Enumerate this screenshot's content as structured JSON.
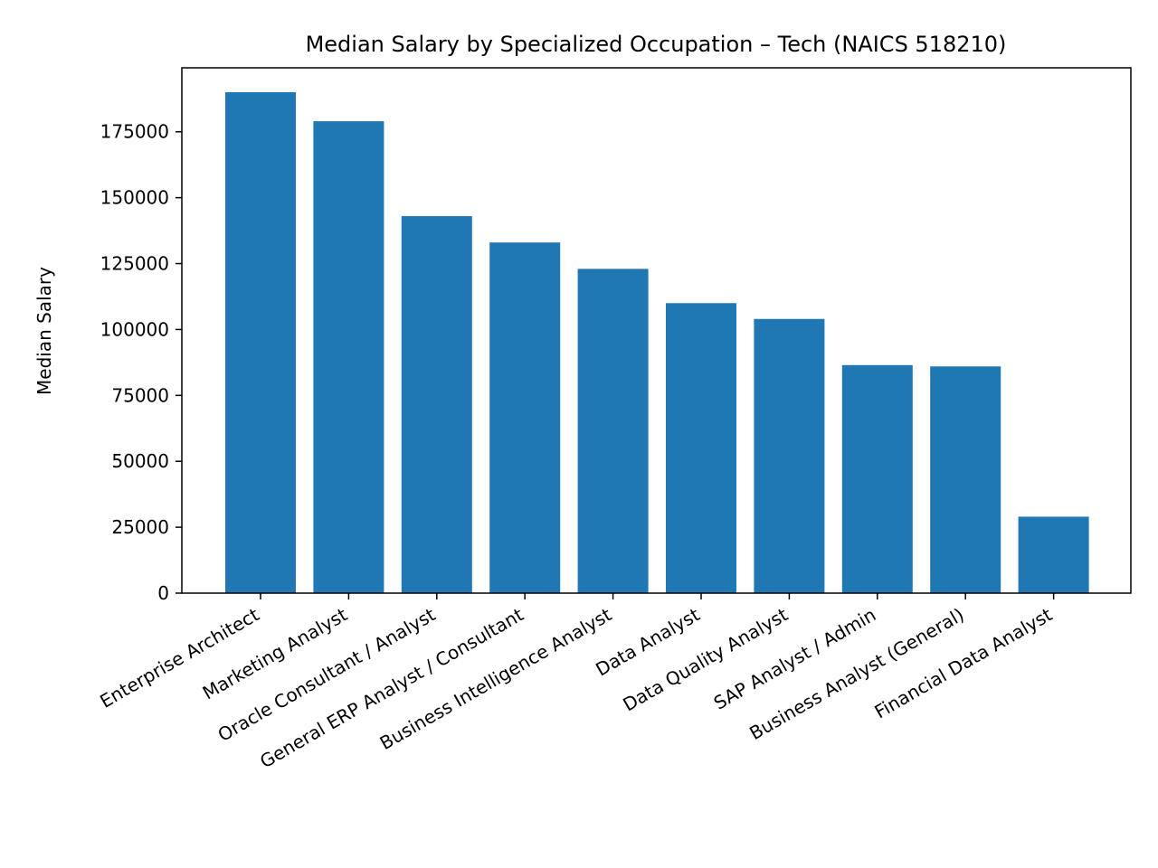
{
  "chart_data": {
    "type": "bar",
    "title": "Median Salary by Specialized Occupation – Tech (NAICS 518210)",
    "xlabel": "",
    "ylabel": "Median Salary",
    "categories": [
      "Enterprise Architect",
      "Marketing Analyst",
      "Oracle Consultant / Analyst",
      "General ERP Analyst / Consultant",
      "Business Intelligence Analyst",
      "Data Analyst",
      "Data Quality Analyst",
      "SAP Analyst / Admin",
      "Business Analyst (General)",
      "Financial Data Analyst"
    ],
    "values": [
      190000,
      179000,
      143000,
      133000,
      123000,
      110000,
      104000,
      86500,
      86000,
      29000
    ],
    "ylim": [
      0,
      190000
    ],
    "y_ticks": [
      0,
      25000,
      50000,
      75000,
      100000,
      125000,
      150000,
      175000
    ],
    "y_tick_labels": [
      "0",
      "25000",
      "50000",
      "75000",
      "100000",
      "125000",
      "150000",
      "175000"
    ],
    "grid": false,
    "legend": "none",
    "colors": {
      "bar": "#1f77b4",
      "axis": "#000000",
      "background": "#ffffff"
    }
  }
}
